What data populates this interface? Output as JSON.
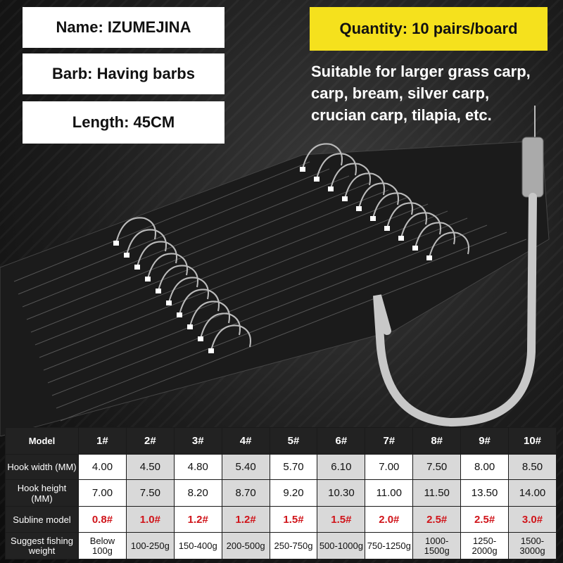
{
  "tags": {
    "name": "Name: IZUMEJINA",
    "barb": "Barb: Having barbs",
    "length": "Length: 45CM",
    "quantity": "Quantity: 10 pairs/board"
  },
  "suitable": [
    "Suitable for larger grass carp,",
    "carp, bream, silver carp,",
    "crucian carp, tilapia, etc."
  ],
  "colors": {
    "quantity_bg": "#f5e11d",
    "subline_text": "#d0141a",
    "cell_alt": "#d9d9d9"
  },
  "table": {
    "header": [
      "Model",
      "1#",
      "2#",
      "3#",
      "4#",
      "5#",
      "6#",
      "7#",
      "8#",
      "9#",
      "10#"
    ],
    "rows": [
      {
        "label": "Hook width (MM)",
        "values": [
          "4.00",
          "4.50",
          "4.80",
          "5.40",
          "5.70",
          "6.10",
          "7.00",
          "7.50",
          "8.00",
          "8.50"
        ]
      },
      {
        "label": "Hook height (MM)",
        "values": [
          "7.00",
          "7.50",
          "8.20",
          "8.70",
          "9.20",
          "10.30",
          "11.00",
          "11.50",
          "13.50",
          "14.00"
        ]
      },
      {
        "label": "Subline model",
        "values": [
          "0.8#",
          "1.0#",
          "1.2#",
          "1.2#",
          "1.5#",
          "1.5#",
          "2.0#",
          "2.5#",
          "2.5#",
          "3.0#"
        ]
      },
      {
        "label": "Suggest fishing weight",
        "values": [
          "Below 100g",
          "100-250g",
          "150-400g",
          "200-500g",
          "250-750g",
          "500-1000g",
          "750-1250g",
          "1000-1500g",
          "1250-2000g",
          "1500-3000g"
        ]
      }
    ]
  }
}
